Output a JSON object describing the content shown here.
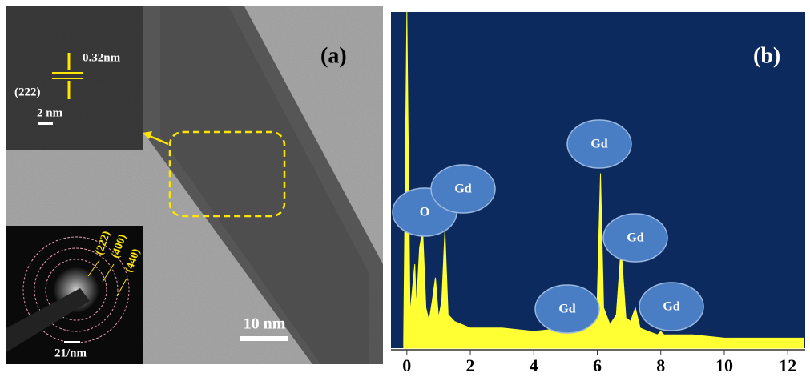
{
  "panel_a": {
    "label": "(a)",
    "inset_spacing": "0.32nm",
    "inset_plane": "(222)",
    "inset_scale": "2 nm",
    "saed_rings": [
      "(222)",
      "(400)",
      "(440)"
    ],
    "saed_scale": "21/nm",
    "scale_bar": "10 nm"
  },
  "chart_data": {
    "type": "area",
    "label": "(b)",
    "color": "#ffff33",
    "background": "#0d2a5e",
    "xlim": [
      -0.5,
      12.55
    ],
    "xticks": [
      0,
      2,
      4,
      6,
      8,
      10,
      12
    ],
    "ylim": [
      0,
      100
    ],
    "x": [
      -0.1,
      0,
      0.1,
      0.2,
      0.25,
      0.3,
      0.4,
      0.5,
      0.6,
      0.7,
      0.8,
      0.9,
      1.0,
      1.1,
      1.2,
      1.3,
      1.5,
      2,
      3,
      4,
      5,
      5.8,
      6.0,
      6.1,
      6.2,
      6.4,
      6.6,
      6.75,
      6.9,
      7.05,
      7.2,
      7.35,
      7.6,
      7.9,
      8.0,
      8.1,
      8.3,
      9,
      10,
      11,
      12,
      12.5
    ],
    "values": [
      2,
      100,
      10,
      20,
      25,
      12,
      30,
      35,
      12,
      8,
      14,
      21,
      9,
      14,
      35,
      10,
      8,
      6,
      6,
      5,
      6,
      7,
      15,
      52,
      12,
      7,
      10,
      30,
      9,
      8,
      12,
      6,
      5,
      4,
      5,
      4,
      4,
      4,
      3,
      3,
      3,
      3
    ],
    "annotations": [
      "O",
      "Gd",
      "Gd",
      "Gd",
      "Gd",
      "Gd"
    ]
  }
}
